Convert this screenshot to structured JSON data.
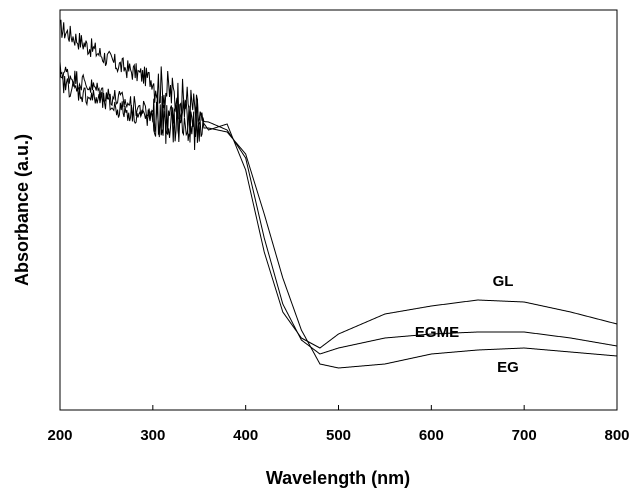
{
  "chart_data": {
    "type": "line",
    "title": "",
    "xlabel": "Wavelength (nm)",
    "ylabel": "Absorbance (a.u.)",
    "xlim": [
      200,
      800
    ],
    "ylim": [
      0,
      1
    ],
    "x_ticks": [
      200,
      300,
      400,
      500,
      600,
      700,
      800
    ],
    "y_ticks_labeled": false,
    "grid": false,
    "legend": "none",
    "series": [
      {
        "name": "GL",
        "x": [
          200,
          220,
          240,
          260,
          280,
          300,
          320,
          340,
          360,
          380,
          400,
          420,
          440,
          460,
          480,
          500,
          550,
          600,
          650,
          700,
          750,
          800
        ],
        "y": [
          0.955,
          0.925,
          0.895,
          0.865,
          0.845,
          0.825,
          0.79,
          0.765,
          0.7,
          0.715,
          0.6,
          0.395,
          0.245,
          0.18,
          0.155,
          0.19,
          0.24,
          0.26,
          0.275,
          0.27,
          0.245,
          0.215
        ]
      },
      {
        "name": "EGME",
        "x": [
          200,
          220,
          240,
          260,
          280,
          300,
          320,
          340,
          360,
          380,
          400,
          420,
          440,
          460,
          480,
          500,
          550,
          600,
          650,
          700,
          750,
          800
        ],
        "y": [
          0.85,
          0.825,
          0.8,
          0.78,
          0.76,
          0.74,
          0.73,
          0.725,
          0.72,
          0.7,
          0.63,
          0.43,
          0.265,
          0.175,
          0.14,
          0.155,
          0.18,
          0.19,
          0.195,
          0.195,
          0.18,
          0.16
        ]
      },
      {
        "name": "EG",
        "x": [
          200,
          220,
          240,
          260,
          280,
          300,
          320,
          340,
          360,
          380,
          400,
          420,
          440,
          460,
          480,
          500,
          550,
          600,
          650,
          700,
          750,
          800
        ],
        "y": [
          0.82,
          0.795,
          0.775,
          0.755,
          0.74,
          0.725,
          0.715,
          0.705,
          0.705,
          0.695,
          0.64,
          0.49,
          0.33,
          0.2,
          0.115,
          0.105,
          0.115,
          0.14,
          0.15,
          0.155,
          0.145,
          0.135
        ]
      }
    ]
  }
}
